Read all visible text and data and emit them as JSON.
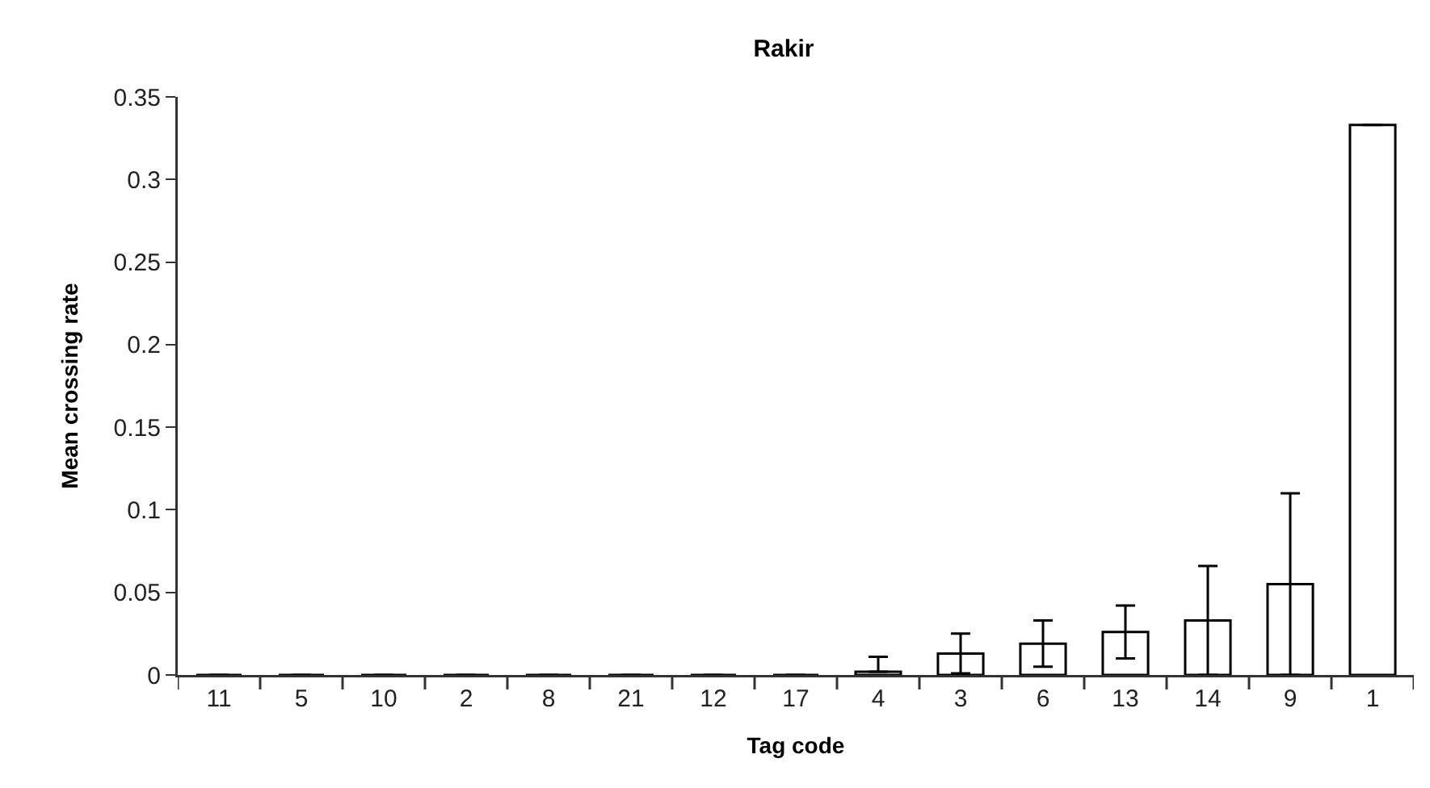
{
  "chart_data": {
    "type": "bar",
    "title": "Rakir",
    "xlabel": "Tag code",
    "ylabel": "Mean crossing rate",
    "categories": [
      "11",
      "5",
      "10",
      "2",
      "8",
      "21",
      "12",
      "17",
      "4",
      "3",
      "6",
      "13",
      "14",
      "9",
      "1"
    ],
    "values": [
      0,
      0,
      0,
      0,
      0,
      0,
      0,
      0,
      0.002,
      0.013,
      0.019,
      0.026,
      0.033,
      0.055,
      0.333
    ],
    "errors": [
      null,
      null,
      null,
      null,
      null,
      null,
      null,
      null,
      [
        0.002,
        0.011
      ],
      0.012,
      0.014,
      0.016,
      0.033,
      0.055,
      null
    ],
    "color": "#ffffff",
    "ylim": [
      0,
      0.35
    ],
    "yticks": [
      0,
      0.05,
      0.1,
      0.15,
      0.2,
      0.25,
      0.3,
      0.35
    ],
    "grid": false
  }
}
